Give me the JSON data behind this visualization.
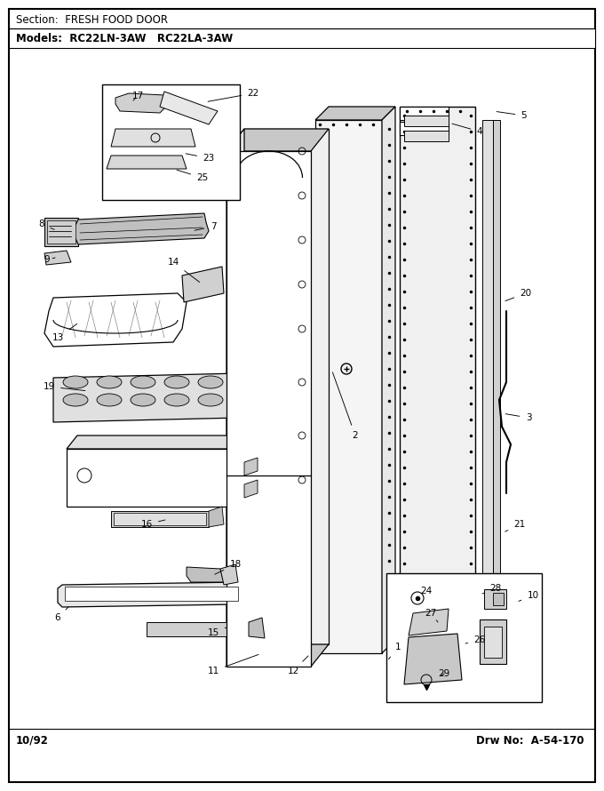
{
  "section_text": "Section:  FRESH FOOD DOOR",
  "models_text": "Models:  RC22LN-3AW   RC22LA-3AW",
  "footer_left": "10/92",
  "footer_right": "Drw No:  A-54-170",
  "bg_color": "#ffffff"
}
